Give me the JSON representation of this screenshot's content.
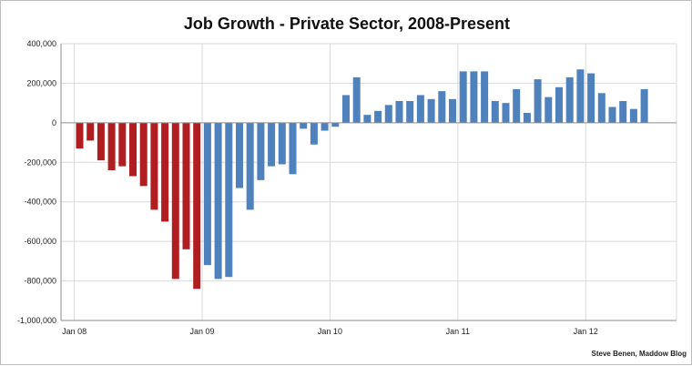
{
  "chart_data": {
    "type": "bar",
    "title": "Job Growth - Private Sector, 2008-Present",
    "xlabel": "",
    "ylabel": "",
    "ylim": [
      -1000000,
      400000
    ],
    "yticks": [
      400000,
      200000,
      0,
      -200000,
      -400000,
      -600000,
      -800000,
      -1000000
    ],
    "ytick_labels": [
      "400,000",
      "200,000",
      "0",
      "-200,000",
      "-400,000",
      "-600,000",
      "-800,000",
      "-1,000,000"
    ],
    "xtick_labels": [
      {
        "label": "Jan 08",
        "month_index": 0
      },
      {
        "label": "Jan 09",
        "month_index": 12
      },
      {
        "label": "Jan 10",
        "month_index": 24
      },
      {
        "label": "Jan 11",
        "month_index": 36
      },
      {
        "label": "Jan 12",
        "month_index": 48
      }
    ],
    "grid": true,
    "series": [
      {
        "color": "#b01e22",
        "start_index": 0,
        "values": [
          -130000,
          -90000,
          -190000,
          -240000,
          -220000,
          -270000,
          -320000,
          -440000,
          -500000,
          -790000,
          -640000,
          -840000
        ]
      },
      {
        "color": "#4f81bd",
        "start_index": 12,
        "values": [
          -720000,
          -790000,
          -780000,
          -330000,
          -440000,
          -290000,
          -220000,
          -210000,
          -260000,
          -30000,
          -110000,
          -40000,
          -20000,
          140000,
          230000,
          40000,
          60000,
          90000,
          110000,
          110000,
          140000,
          120000,
          160000,
          120000,
          260000,
          260000,
          260000,
          110000,
          100000,
          170000,
          50000,
          220000,
          130000,
          180000,
          230000,
          270000,
          250000,
          150000,
          80000,
          110000,
          70000,
          170000
        ]
      }
    ]
  },
  "credit": "Steve Benen, Maddow Blog"
}
